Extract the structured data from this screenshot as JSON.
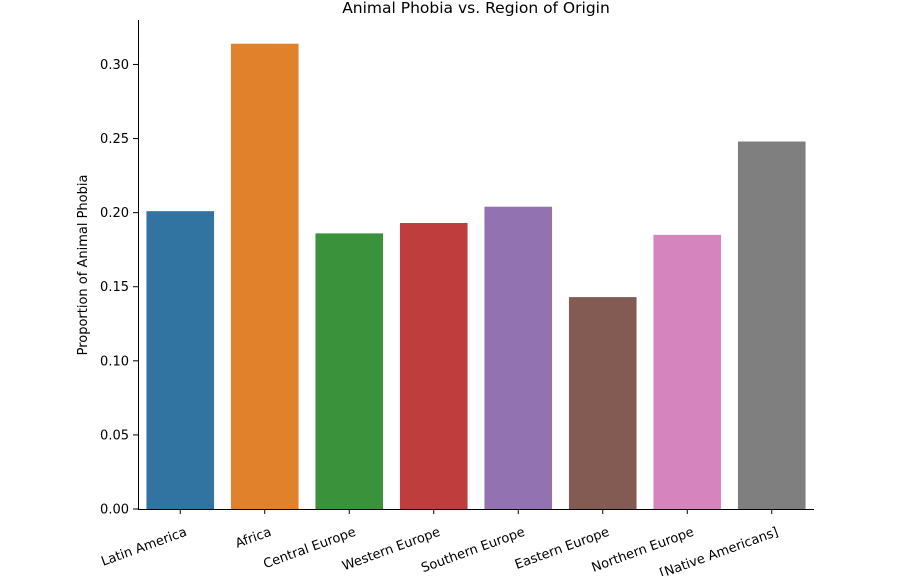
{
  "chart_data": {
    "type": "bar",
    "title": "Animal Phobia vs. Region of Origin",
    "xlabel": "",
    "ylabel": "Proportion of Animal Phobia",
    "ylim": [
      0,
      0.33
    ],
    "yticks": [
      0.0,
      0.05,
      0.1,
      0.15,
      0.2,
      0.25,
      0.3
    ],
    "ytick_labels": [
      "0.00",
      "0.05",
      "0.10",
      "0.15",
      "0.20",
      "0.25",
      "0.30"
    ],
    "categories": [
      "Latin America",
      "Africa",
      "Central Europe",
      "Western Europe",
      "Southern Europe",
      "Eastern Europe",
      "Northern Europe",
      "[Native Americans]"
    ],
    "values": [
      0.201,
      0.314,
      0.186,
      0.193,
      0.204,
      0.143,
      0.185,
      0.248
    ],
    "colors": [
      "#3274a1",
      "#e1812c",
      "#3a923a",
      "#c03d3e",
      "#9372b2",
      "#845b53",
      "#d684bd",
      "#7f7f7f"
    ],
    "grid": false,
    "legend": "none"
  }
}
